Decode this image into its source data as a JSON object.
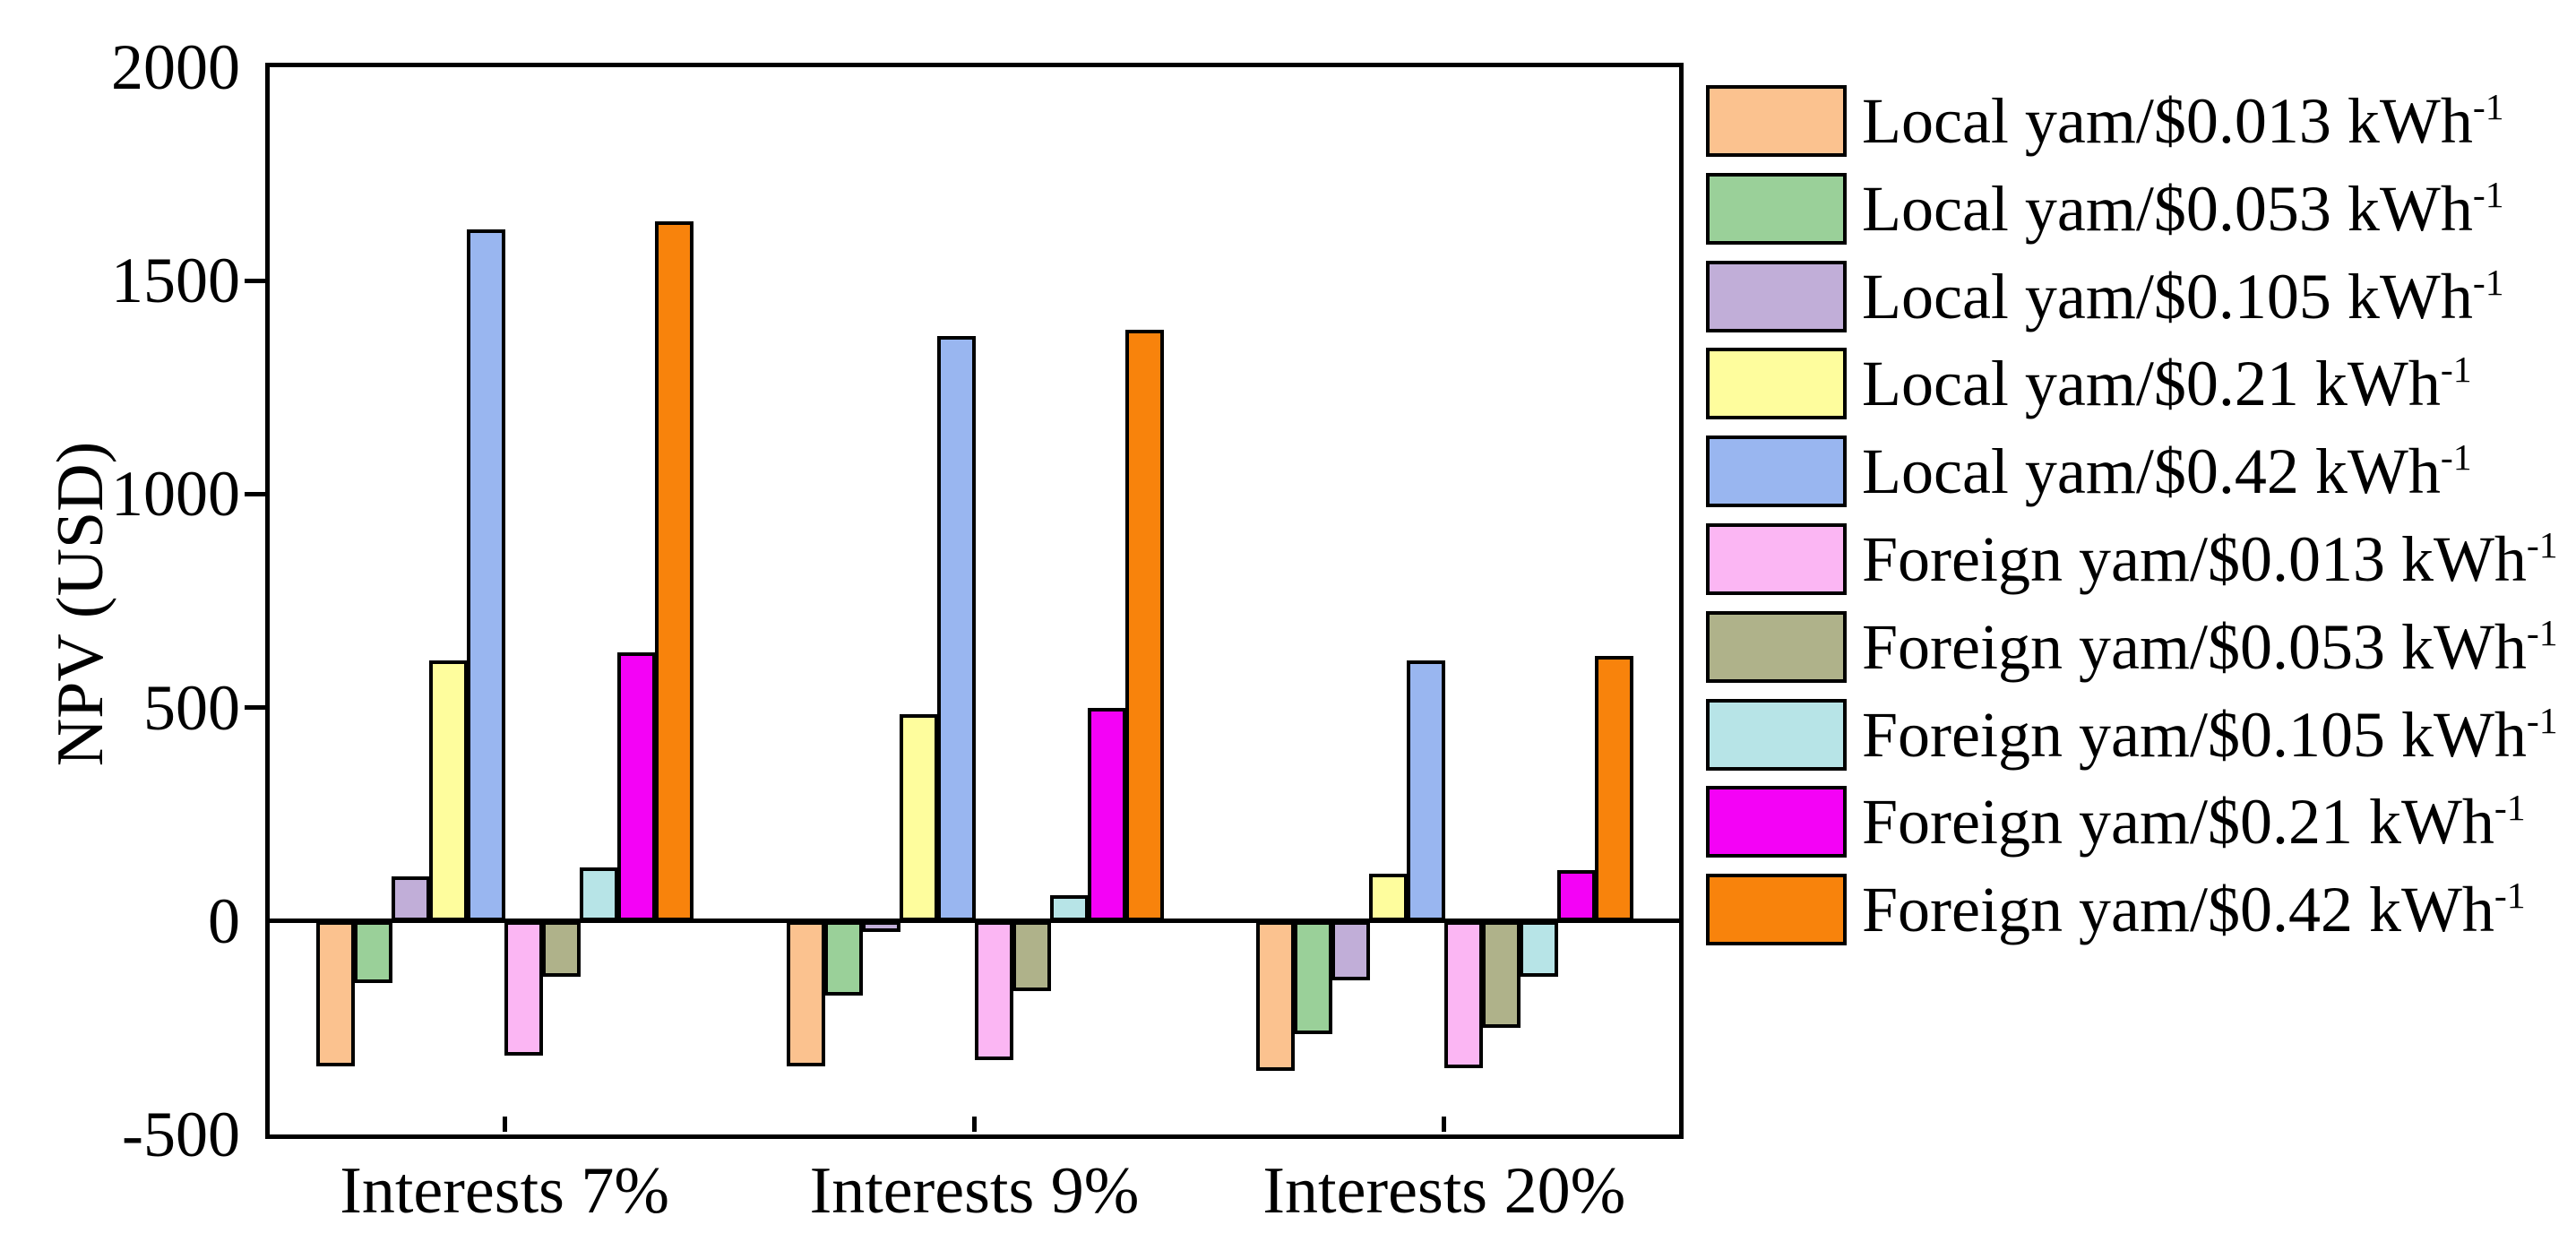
{
  "chart_data": {
    "type": "bar",
    "title": "",
    "ylabel": "NPV (USD)",
    "xlabel": "",
    "categories": [
      "Interests 7%",
      "Interests 9%",
      "Interests 20%"
    ],
    "ylim": [
      -500,
      2000
    ],
    "ytick_values": [
      2000,
      1500,
      1000,
      500,
      0,
      -500
    ],
    "grid": false,
    "legend_position": "right",
    "bar_outline_color": "#000000",
    "series": [
      {
        "label": "Local yam/$0.013 kWh",
        "exp": "-1",
        "color": "#FBC28F",
        "values": [
          -340,
          -340,
          -350
        ]
      },
      {
        "label": "Local yam/$0.053 kWh",
        "exp": "-1",
        "color": "#9AD099",
        "values": [
          -145,
          -175,
          -265
        ]
      },
      {
        "label": "Local yam/$0.105 kWh",
        "exp": "-1",
        "color": "#C1AED8",
        "values": [
          105,
          -8,
          -140
        ]
      },
      {
        "label": "Local yam/$0.21 kWh",
        "exp": "-1",
        "color": "#FEFD9D",
        "values": [
          610,
          485,
          110
        ]
      },
      {
        "label": "Local yam/$0.42 kWh",
        "exp": "-1",
        "color": "#99B6F0",
        "values": [
          1620,
          1370,
          610
        ]
      },
      {
        "label": "Foreign yam/$0.013 kWh",
        "exp": "-1",
        "color": "#FBB6F3",
        "values": [
          -315,
          -325,
          -345
        ]
      },
      {
        "label": "Foreign yam/$0.053 kWh",
        "exp": "-1",
        "color": "#AFB28A",
        "values": [
          -130,
          -165,
          -250
        ]
      },
      {
        "label": "Foreign yam/$0.105 kWh",
        "exp": "-1",
        "color": "#B7E4E7",
        "values": [
          125,
          60,
          -130
        ]
      },
      {
        "label": "Foreign yam/$0.21 kWh",
        "exp": "-1",
        "color": "#F402F6",
        "values": [
          630,
          500,
          120
        ]
      },
      {
        "label": "Foreign yam/$0.42 kWh",
        "exp": "-1",
        "color": "#F8830C",
        "values": [
          1640,
          1385,
          620
        ]
      }
    ]
  }
}
